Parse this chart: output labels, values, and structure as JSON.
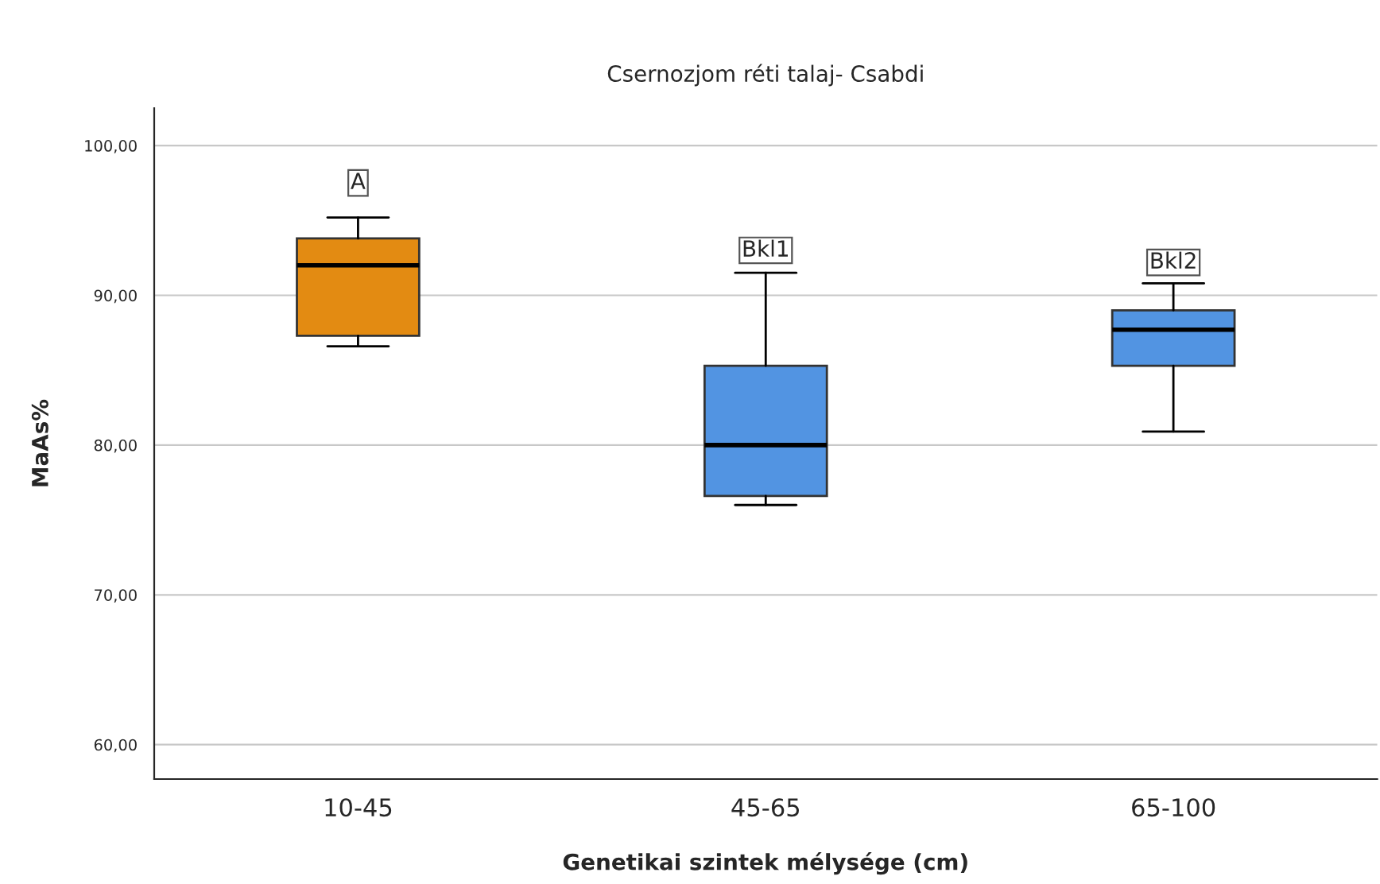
{
  "chart_data": {
    "type": "box",
    "title": "Csernozjom réti talaj- Csabdi",
    "xlabel": "Genetikai szintek mélysége (cm)",
    "ylabel": "MaAs%",
    "categories": [
      "10-45",
      "45-65",
      "65-100"
    ],
    "colors": [
      "#e38b12",
      "#5294e2",
      "#5294e2"
    ],
    "boxes": [
      {
        "low": 86.6,
        "q1": 87.3,
        "median": 92.0,
        "q3": 93.8,
        "high": 95.2
      },
      {
        "low": 76.0,
        "q1": 76.6,
        "median": 80.0,
        "q3": 85.3,
        "high": 91.5
      },
      {
        "low": 80.9,
        "q1": 85.3,
        "median": 87.7,
        "q3": 89.0,
        "high": 90.8
      }
    ],
    "ylim": [
      57.7,
      102.5
    ],
    "yticks": [
      {
        "value": 60,
        "label": "60,00"
      },
      {
        "value": 70,
        "label": "70,00"
      },
      {
        "value": 80,
        "label": "80,00"
      },
      {
        "value": 90,
        "label": "90,00"
      },
      {
        "value": 100,
        "label": "100,00"
      }
    ],
    "grid": "y",
    "annotations": [
      {
        "text": "A",
        "x": "10-45",
        "y": 97.5
      },
      {
        "text": "Bkl1",
        "x": "45-65",
        "y": 93.0
      },
      {
        "text": "Bkl2",
        "x": "65-100",
        "y": 92.2
      }
    ]
  }
}
